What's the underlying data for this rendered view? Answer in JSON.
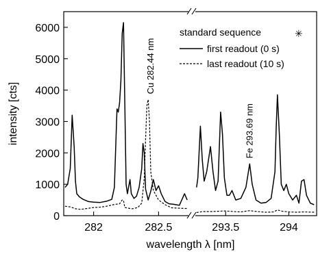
{
  "chart_data": {
    "type": "line",
    "xlabel": "wavelength λ [nm]",
    "ylabel": "intensity [cts]",
    "ylim": [
      0,
      6500
    ],
    "y_ticks": [
      0,
      1000,
      2000,
      3000,
      4000,
      5000,
      6000
    ],
    "broken_x_axis": true,
    "segments": [
      {
        "xlim": [
          281.77,
          282.73
        ],
        "x_ticks": [
          282,
          282.5
        ],
        "x_tick_labels": [
          "282",
          "282.5"
        ]
      },
      {
        "xlim": [
          293.26,
          294.22
        ],
        "x_ticks": [
          293.5,
          294
        ],
        "x_tick_labels": [
          "293.5",
          "294"
        ]
      }
    ],
    "legend": {
      "placement": "top-right",
      "header": "standard sequence",
      "header_symbol": "✳"
    },
    "series": [
      {
        "name": "first readout (0 s)",
        "style": "solid",
        "segments": [
          [
            [
              281.78,
              900
            ],
            [
              281.8,
              1000
            ],
            [
              281.82,
              1500
            ],
            [
              281.835,
              3200
            ],
            [
              281.85,
              2200
            ],
            [
              281.86,
              1100
            ],
            [
              281.87,
              700
            ],
            [
              281.89,
              600
            ],
            [
              281.92,
              520
            ],
            [
              281.96,
              450
            ],
            [
              282.0,
              430
            ],
            [
              282.05,
              420
            ],
            [
              282.1,
              460
            ],
            [
              282.14,
              520
            ],
            [
              282.16,
              900
            ],
            [
              282.18,
              3400
            ],
            [
              282.19,
              3300
            ],
            [
              282.2,
              3600
            ],
            [
              282.21,
              4300
            ],
            [
              282.22,
              5800
            ],
            [
              282.23,
              6150
            ],
            [
              282.24,
              3600
            ],
            [
              282.25,
              1000
            ],
            [
              282.26,
              700
            ],
            [
              282.28,
              1150
            ],
            [
              282.29,
              700
            ],
            [
              282.31,
              550
            ],
            [
              282.33,
              620
            ],
            [
              282.35,
              900
            ],
            [
              282.37,
              1500
            ],
            [
              282.38,
              2300
            ],
            [
              282.39,
              2000
            ],
            [
              282.4,
              850
            ],
            [
              282.42,
              500
            ],
            [
              282.44,
              780
            ],
            [
              282.46,
              1150
            ],
            [
              282.48,
              800
            ],
            [
              282.5,
              950
            ],
            [
              282.52,
              700
            ],
            [
              282.55,
              450
            ],
            [
              282.58,
              380
            ],
            [
              282.62,
              360
            ],
            [
              282.66,
              330
            ],
            [
              282.7,
              700
            ],
            [
              282.72,
              500
            ]
          ],
          [
            [
              293.27,
              900
            ],
            [
              293.28,
              1200
            ],
            [
              293.3,
              2850
            ],
            [
              293.315,
              1800
            ],
            [
              293.33,
              1100
            ],
            [
              293.35,
              1400
            ],
            [
              293.38,
              2200
            ],
            [
              293.4,
              1400
            ],
            [
              293.42,
              800
            ],
            [
              293.44,
              1100
            ],
            [
              293.46,
              3300
            ],
            [
              293.475,
              2600
            ],
            [
              293.49,
              1200
            ],
            [
              293.51,
              650
            ],
            [
              293.53,
              650
            ],
            [
              293.55,
              800
            ],
            [
              293.58,
              500
            ],
            [
              293.62,
              550
            ],
            [
              293.66,
              900
            ],
            [
              293.69,
              1650
            ],
            [
              293.71,
              1000
            ],
            [
              293.74,
              500
            ],
            [
              293.78,
              400
            ],
            [
              293.82,
              420
            ],
            [
              293.86,
              550
            ],
            [
              293.89,
              1400
            ],
            [
              293.9,
              2800
            ],
            [
              293.91,
              3850
            ],
            [
              293.925,
              2600
            ],
            [
              293.94,
              1000
            ],
            [
              293.96,
              800
            ],
            [
              293.98,
              1000
            ],
            [
              294.0,
              700
            ],
            [
              294.03,
              500
            ],
            [
              294.06,
              650
            ],
            [
              294.08,
              400
            ],
            [
              294.1,
              1100
            ],
            [
              294.12,
              1150
            ],
            [
              294.14,
              650
            ],
            [
              294.17,
              400
            ],
            [
              294.2,
              350
            ]
          ]
        ]
      },
      {
        "name": "last readout (10 s)",
        "style": "dashed",
        "segments": [
          [
            [
              281.78,
              300
            ],
            [
              281.82,
              280
            ],
            [
              281.86,
              220
            ],
            [
              281.9,
              200
            ],
            [
              281.95,
              230
            ],
            [
              282.0,
              260
            ],
            [
              282.05,
              270
            ],
            [
              282.1,
              300
            ],
            [
              282.15,
              350
            ],
            [
              282.2,
              380
            ],
            [
              282.22,
              500
            ],
            [
              282.23,
              480
            ],
            [
              282.24,
              260
            ],
            [
              282.28,
              230
            ],
            [
              282.3,
              220
            ],
            [
              282.34,
              260
            ],
            [
              282.37,
              400
            ],
            [
              282.39,
              1200
            ],
            [
              282.4,
              2400
            ],
            [
              282.41,
              3500
            ],
            [
              282.42,
              3700
            ],
            [
              282.43,
              3000
            ],
            [
              282.44,
              1400
            ],
            [
              282.46,
              800
            ],
            [
              282.5,
              500
            ],
            [
              282.55,
              350
            ],
            [
              282.6,
              250
            ],
            [
              282.65,
              240
            ],
            [
              282.7,
              230
            ],
            [
              282.72,
              230
            ]
          ],
          [
            [
              293.27,
              100
            ],
            [
              293.32,
              130
            ],
            [
              293.38,
              130
            ],
            [
              293.44,
              140
            ],
            [
              293.5,
              150
            ],
            [
              293.56,
              130
            ],
            [
              293.62,
              120
            ],
            [
              293.69,
              160
            ],
            [
              293.75,
              130
            ],
            [
              293.82,
              110
            ],
            [
              293.88,
              120
            ],
            [
              293.91,
              180
            ],
            [
              293.95,
              140
            ],
            [
              294.0,
              120
            ],
            [
              294.06,
              110
            ],
            [
              294.12,
              120
            ],
            [
              294.2,
              110
            ]
          ]
        ]
      }
    ],
    "annotations": [
      {
        "text": "Cu 282.44 nm",
        "x": 282.44,
        "y": 3700
      },
      {
        "text": "Fe 293.69 nm",
        "x": 293.69,
        "y": 1650
      }
    ]
  }
}
